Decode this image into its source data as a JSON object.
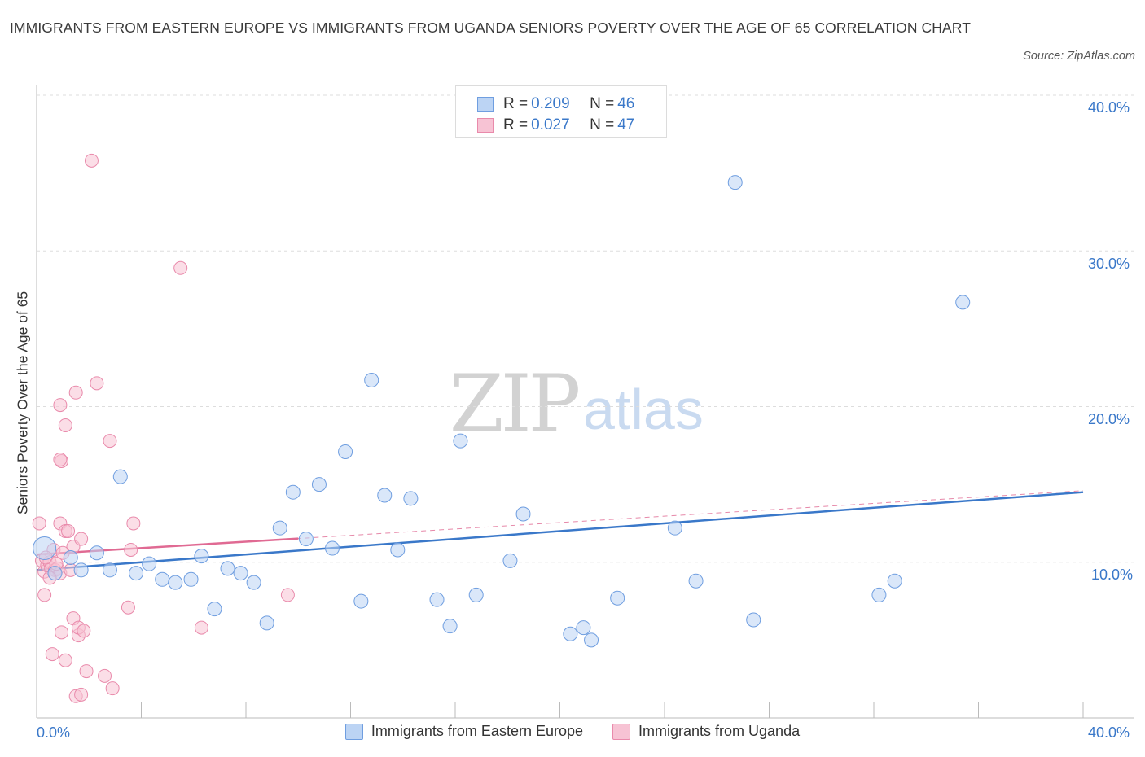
{
  "title": "IMMIGRANTS FROM EASTERN EUROPE VS IMMIGRANTS FROM UGANDA SENIORS POVERTY OVER THE AGE OF 65 CORRELATION CHART",
  "source": "Source: ZipAtlas.com",
  "watermark": {
    "zip": "ZIP",
    "atlas": "atlas"
  },
  "colors": {
    "blue": "#3a78c9",
    "blue_fill": "#bcd4f4",
    "pink": "#e06a93",
    "pink_fill": "#f7c3d4",
    "grid": "#dddddd"
  },
  "legend": {
    "rows": [
      {
        "r_label": "R = ",
        "r_value": "0.209",
        "n_label": "N = ",
        "n_value": "46"
      },
      {
        "r_label": "R = ",
        "r_value": "0.027",
        "n_label": "N = ",
        "n_value": "47"
      }
    ]
  },
  "chart_data": {
    "type": "scatter",
    "title": "IMMIGRANTS FROM EASTERN EUROPE VS IMMIGRANTS FROM UGANDA SENIORS POVERTY OVER THE AGE OF 65 CORRELATION CHART",
    "xlabel": "",
    "ylabel": "Seniors Poverty Over the Age of 65",
    "xlim": [
      0,
      40
    ],
    "ylim": [
      0,
      40
    ],
    "x_tick_labels": [
      "0.0%",
      "40.0%"
    ],
    "y_tick_labels": [
      "10.0%",
      "20.0%",
      "30.0%",
      "40.0%"
    ],
    "y_ticks": [
      10,
      20,
      30,
      40
    ],
    "series": [
      {
        "name": "Immigrants from Eastern Europe",
        "color": "#3a78c9",
        "R": 0.209,
        "N": 46,
        "trend": {
          "x": [
            0,
            40
          ],
          "y": [
            9.5,
            14.5
          ],
          "extent_x": [
            0,
            40
          ]
        },
        "points": [
          [
            0.3,
            10.9
          ],
          [
            0.7,
            9.3
          ],
          [
            1.3,
            10.3
          ],
          [
            1.7,
            9.5
          ],
          [
            2.3,
            10.6
          ],
          [
            2.8,
            9.5
          ],
          [
            3.2,
            15.5
          ],
          [
            3.8,
            9.3
          ],
          [
            4.3,
            9.9
          ],
          [
            4.8,
            8.9
          ],
          [
            5.3,
            8.7
          ],
          [
            5.9,
            8.9
          ],
          [
            6.3,
            10.4
          ],
          [
            6.8,
            7.0
          ],
          [
            7.3,
            9.6
          ],
          [
            7.8,
            9.3
          ],
          [
            8.3,
            8.7
          ],
          [
            8.8,
            6.1
          ],
          [
            9.3,
            12.2
          ],
          [
            9.8,
            14.5
          ],
          [
            10.3,
            11.5
          ],
          [
            10.8,
            15.0
          ],
          [
            11.3,
            10.9
          ],
          [
            11.8,
            17.1
          ],
          [
            12.4,
            7.5
          ],
          [
            12.8,
            21.7
          ],
          [
            13.3,
            14.3
          ],
          [
            13.8,
            10.8
          ],
          [
            14.3,
            14.1
          ],
          [
            15.3,
            7.6
          ],
          [
            15.8,
            5.9
          ],
          [
            16.2,
            17.8
          ],
          [
            16.8,
            7.9
          ],
          [
            18.1,
            10.1
          ],
          [
            18.6,
            13.1
          ],
          [
            20.4,
            5.4
          ],
          [
            20.9,
            5.8
          ],
          [
            21.2,
            5.0
          ],
          [
            22.2,
            7.7
          ],
          [
            24.4,
            12.2
          ],
          [
            25.2,
            8.8
          ],
          [
            26.7,
            34.4
          ],
          [
            27.4,
            6.3
          ],
          [
            32.2,
            7.9
          ],
          [
            32.8,
            8.8
          ],
          [
            35.4,
            26.7
          ]
        ]
      },
      {
        "name": "Immigrants from Uganda",
        "color": "#e06a93",
        "R": 0.027,
        "N": 47,
        "trend": {
          "x": [
            0,
            40
          ],
          "y": [
            10.5,
            14.6
          ],
          "solid_until_x": 10.0
        },
        "points": [
          [
            0.1,
            12.5
          ],
          [
            0.2,
            10.1
          ],
          [
            0.3,
            9.4
          ],
          [
            0.3,
            7.9
          ],
          [
            0.4,
            9.8
          ],
          [
            0.5,
            10.0
          ],
          [
            0.55,
            9.6
          ],
          [
            0.6,
            4.1
          ],
          [
            0.65,
            10.8
          ],
          [
            0.7,
            9.5
          ],
          [
            0.8,
            9.6
          ],
          [
            0.9,
            9.3
          ],
          [
            0.95,
            5.5
          ],
          [
            0.9,
            12.5
          ],
          [
            0.9,
            20.1
          ],
          [
            0.95,
            16.5
          ],
          [
            0.9,
            16.6
          ],
          [
            1.1,
            12.0
          ],
          [
            1.1,
            18.8
          ],
          [
            1.1,
            3.7
          ],
          [
            1.2,
            12.0
          ],
          [
            1.3,
            9.5
          ],
          [
            1.4,
            11.0
          ],
          [
            1.4,
            6.4
          ],
          [
            1.5,
            1.4
          ],
          [
            1.5,
            20.9
          ],
          [
            1.6,
            5.3
          ],
          [
            1.6,
            5.8
          ],
          [
            1.7,
            1.5
          ],
          [
            1.7,
            11.5
          ],
          [
            1.8,
            5.6
          ],
          [
            1.9,
            3.0
          ],
          [
            2.1,
            35.8
          ],
          [
            2.3,
            21.5
          ],
          [
            2.6,
            2.7
          ],
          [
            2.8,
            17.8
          ],
          [
            2.9,
            1.9
          ],
          [
            3.5,
            7.1
          ],
          [
            3.6,
            10.8
          ],
          [
            3.7,
            12.5
          ],
          [
            5.5,
            28.9
          ],
          [
            6.3,
            5.8
          ],
          [
            9.6,
            7.9
          ],
          [
            0.35,
            10.3
          ],
          [
            0.5,
            9.0
          ],
          [
            1.0,
            10.6
          ],
          [
            0.75,
            9.9
          ]
        ]
      }
    ]
  },
  "axis": {
    "y_title": "Seniors Poverty Over the Age of 65",
    "x_left": "0.0%",
    "x_right": "40.0%",
    "y_10": "10.0%",
    "y_20": "20.0%",
    "y_30": "30.0%",
    "y_40": "40.0%"
  },
  "bottom_legend": {
    "blue_label": "Immigrants from Eastern Europe",
    "pink_label": "Immigrants from Uganda"
  }
}
